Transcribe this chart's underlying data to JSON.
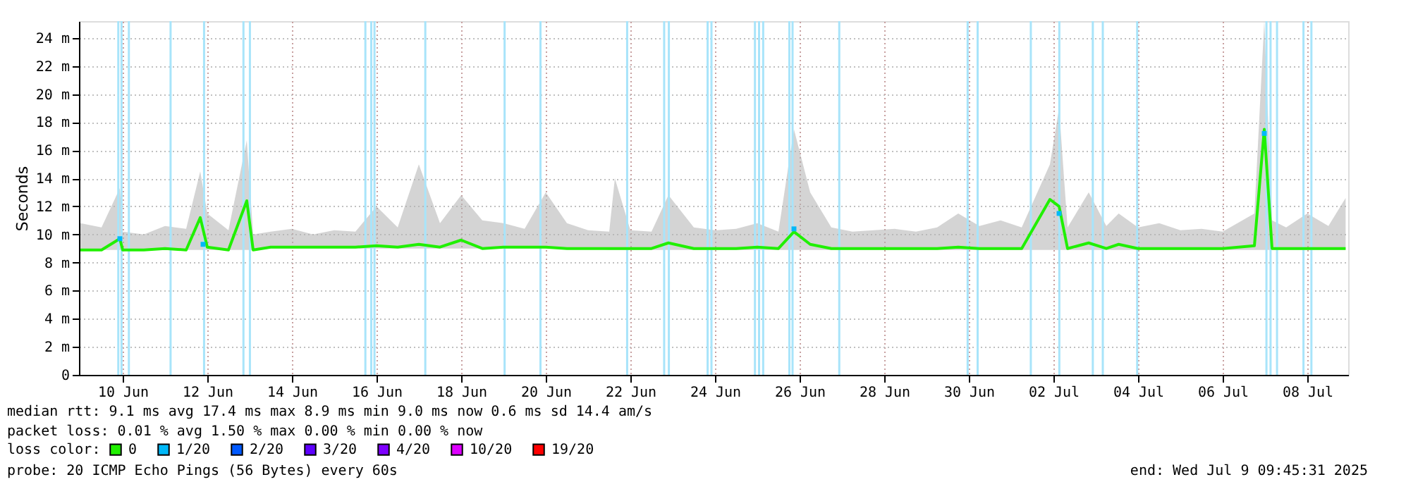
{
  "chart_data": {
    "type": "line",
    "ylabel": "Seconds",
    "xlim": [
      "2025-06-09T11:12",
      "2025-07-09T11:12"
    ],
    "xticks": [
      {
        "value": "2025-06-10T12:00",
        "label": "10 Jun"
      },
      {
        "value": "2025-06-12T12:00",
        "label": "12 Jun"
      },
      {
        "value": "2025-06-14T12:00",
        "label": "14 Jun"
      },
      {
        "value": "2025-06-16T12:00",
        "label": "16 Jun"
      },
      {
        "value": "2025-06-18T12:00",
        "label": "18 Jun"
      },
      {
        "value": "2025-06-20T12:00",
        "label": "20 Jun"
      },
      {
        "value": "2025-06-22T12:00",
        "label": "22 Jun"
      },
      {
        "value": "2025-06-24T12:00",
        "label": "24 Jun"
      },
      {
        "value": "2025-06-26T12:00",
        "label": "26 Jun"
      },
      {
        "value": "2025-06-28T12:00",
        "label": "28 Jun"
      },
      {
        "value": "2025-06-30T12:00",
        "label": "30 Jun"
      },
      {
        "value": "2025-07-02T12:00",
        "label": "02 Jul"
      },
      {
        "value": "2025-07-04T12:00",
        "label": "04 Jul"
      },
      {
        "value": "2025-07-06T12:00",
        "label": "06 Jul"
      },
      {
        "value": "2025-07-08T12:00",
        "label": "08 Jul"
      }
    ],
    "ylim": [
      0,
      25.2
    ],
    "yticks": [
      0,
      {
        "value": 2,
        "label": "2 m"
      },
      {
        "value": 4,
        "label": "4 m"
      },
      {
        "value": 6,
        "label": "6 m"
      },
      {
        "value": 8,
        "label": "8 m"
      },
      {
        "value": 10,
        "label": "10 m"
      },
      {
        "value": 12,
        "label": "12 m"
      },
      {
        "value": 14,
        "label": "14 m"
      },
      {
        "value": 16,
        "label": "16 m"
      },
      {
        "value": 18,
        "label": "18 m"
      },
      {
        "value": 20,
        "label": "20 m"
      },
      {
        "value": 22,
        "label": "22 m"
      },
      {
        "value": 24,
        "label": "24 m"
      }
    ],
    "grid": true,
    "legend": "bottom",
    "legend_title": "loss color:",
    "series": [
      {
        "name": "0",
        "color": "#20f000",
        "x": [
          "2025-06-09T12:00",
          "2025-06-10T00:00",
          "2025-06-10T10:24",
          "2025-06-10T12:00",
          "2025-06-11T00:00",
          "2025-06-11T12:00",
          "2025-06-12T00:00",
          "2025-06-12T08:00",
          "2025-06-12T12:00",
          "2025-06-13T00:00",
          "2025-06-13T10:24",
          "2025-06-13T14:00",
          "2025-06-14T00:00",
          "2025-06-14T12:00",
          "2025-06-15T00:00",
          "2025-06-15T12:00",
          "2025-06-16T00:00",
          "2025-06-16T12:00",
          "2025-06-17T00:00",
          "2025-06-17T12:00",
          "2025-06-18T00:00",
          "2025-06-18T12:00",
          "2025-06-19T00:00",
          "2025-06-19T12:00",
          "2025-06-20T00:00",
          "2025-06-20T12:00",
          "2025-06-21T00:00",
          "2025-06-21T12:00",
          "2025-06-22T00:00",
          "2025-06-22T03:12",
          "2025-06-22T12:00",
          "2025-06-23T00:00",
          "2025-06-23T09:36",
          "2025-06-24T00:00",
          "2025-06-24T12:00",
          "2025-06-25T00:00",
          "2025-06-25T12:00",
          "2025-06-26T00:00",
          "2025-06-26T08:48",
          "2025-06-26T18:00",
          "2025-06-27T06:00",
          "2025-06-27T18:00",
          "2025-06-28T06:00",
          "2025-06-28T18:00",
          "2025-06-29T06:00",
          "2025-06-29T18:00",
          "2025-06-30T06:00",
          "2025-06-30T18:00",
          "2025-07-01T06:00",
          "2025-07-01T18:00",
          "2025-07-02T10:00",
          "2025-07-02T15:12",
          "2025-07-02T20:00",
          "2025-07-03T08:00",
          "2025-07-03T18:00",
          "2025-07-04T01:00",
          "2025-07-04T12:00",
          "2025-07-05T00:00",
          "2025-07-05T12:00",
          "2025-07-06T00:00",
          "2025-07-06T12:00",
          "2025-07-07T06:00",
          "2025-07-07T11:36",
          "2025-07-07T16:00",
          "2025-07-08T00:00",
          "2025-07-08T12:00",
          "2025-07-09T00:00",
          "2025-07-09T09:45"
        ],
        "values": [
          8.9,
          8.9,
          9.7,
          8.9,
          8.9,
          9.0,
          8.9,
          11.2,
          9.1,
          8.9,
          12.4,
          8.9,
          9.1,
          9.1,
          9.1,
          9.1,
          9.1,
          9.2,
          9.1,
          9.3,
          9.1,
          9.6,
          9.0,
          9.1,
          9.1,
          9.1,
          9.0,
          9.0,
          9.0,
          9.0,
          9.0,
          9.0,
          9.4,
          9.0,
          9.0,
          9.0,
          9.1,
          9.0,
          10.2,
          9.3,
          9.0,
          9.0,
          9.0,
          9.0,
          9.0,
          9.0,
          9.1,
          9.0,
          9.0,
          9.0,
          12.5,
          12.0,
          9.0,
          9.4,
          9.0,
          9.3,
          9.0,
          9.0,
          9.0,
          9.0,
          9.0,
          9.2,
          17.5,
          9.0,
          9.0,
          9.0,
          9.0,
          9.0
        ],
        "lower": [
          8.9,
          8.9,
          8.9,
          8.9,
          8.9,
          8.9,
          8.9,
          8.9,
          8.9,
          8.9,
          8.9,
          8.9,
          9.0,
          9.0,
          9.0,
          9.0,
          9.0,
          9.0,
          9.0,
          9.0,
          9.0,
          9.0,
          9.0,
          9.0,
          9.0,
          9.0,
          9.0,
          9.0,
          8.9,
          8.9,
          8.9,
          8.9,
          8.9,
          8.9,
          8.9,
          8.9,
          8.9,
          8.9,
          8.9,
          8.9,
          8.9,
          8.9,
          8.9,
          8.9,
          8.9,
          8.9,
          8.9,
          8.9,
          8.9,
          8.9,
          8.9,
          8.9,
          8.9,
          8.9,
          8.9,
          8.9,
          8.9,
          8.9,
          8.9,
          8.9,
          8.9,
          8.9,
          8.9,
          8.9,
          8.9,
          8.9,
          8.9,
          8.9
        ],
        "upper": [
          10.8,
          10.5,
          13.3,
          10.2,
          10.0,
          10.6,
          10.4,
          14.5,
          11.5,
          10.3,
          16.7,
          10.0,
          10.2,
          10.4,
          10.0,
          10.3,
          10.2,
          12.0,
          10.5,
          15.0,
          10.8,
          12.8,
          11.0,
          10.8,
          10.4,
          13.0,
          10.8,
          10.3,
          10.2,
          14.0,
          10.3,
          10.2,
          12.8,
          10.5,
          10.3,
          10.4,
          10.8,
          10.2,
          17.5,
          13.0,
          10.5,
          10.2,
          10.3,
          10.4,
          10.2,
          10.5,
          11.5,
          10.6,
          11.0,
          10.5,
          15.0,
          19.0,
          10.5,
          13.0,
          10.6,
          11.5,
          10.5,
          10.8,
          10.3,
          10.4,
          10.2,
          11.5,
          25.2,
          11.0,
          10.5,
          11.5,
          10.6,
          12.6
        ]
      },
      {
        "name": "1/20",
        "type": "scatter",
        "color": "#00b8f8",
        "x": [
          "2025-06-10T10:24",
          "2025-06-12T09:36",
          "2025-06-26T08:48",
          "2025-07-02T15:12",
          "2025-07-07T11:36"
        ],
        "values": [
          9.7,
          9.3,
          10.4,
          11.5,
          17.2
        ]
      },
      {
        "name": "2/20",
        "type": "scatter",
        "color": "#0059ff"
      },
      {
        "name": "3/20",
        "type": "scatter",
        "color": "#5e00ff"
      },
      {
        "name": "4/20",
        "type": "scatter",
        "color": "#7e00ff"
      },
      {
        "name": "10/20",
        "type": "scatter",
        "color": "#dd00ff"
      },
      {
        "name": "19/20",
        "type": "scatter",
        "color": "#ff0000"
      }
    ],
    "ref_lines": [
      {
        "axis": "x",
        "value": "2025-06-10T09:30",
        "color": "#a8e4fa"
      },
      {
        "axis": "x",
        "value": "2025-06-10T11:20",
        "color": "#a8e4fa"
      },
      {
        "axis": "x",
        "value": "2025-06-10T15:30",
        "color": "#a8e4fa"
      },
      {
        "axis": "x",
        "value": "2025-06-11T15:10",
        "color": "#a8e4fa"
      },
      {
        "axis": "x",
        "value": "2025-06-12T10:10",
        "color": "#a8e4fa"
      },
      {
        "axis": "x",
        "value": "2025-06-13T08:30",
        "color": "#a8e4fa"
      },
      {
        "axis": "x",
        "value": "2025-06-13T12:10",
        "color": "#a8e4fa"
      },
      {
        "axis": "x",
        "value": "2025-06-16T05:40",
        "color": "#a8e4fa"
      },
      {
        "axis": "x",
        "value": "2025-06-16T09:00",
        "color": "#a8e4fa"
      },
      {
        "axis": "x",
        "value": "2025-06-16T10:50",
        "color": "#a8e4fa"
      },
      {
        "axis": "x",
        "value": "2025-06-17T15:40",
        "color": "#a8e4fa"
      },
      {
        "axis": "x",
        "value": "2025-06-19T12:40",
        "color": "#a8e4fa"
      },
      {
        "axis": "x",
        "value": "2025-06-20T09:00",
        "color": "#a8e4fa"
      },
      {
        "axis": "x",
        "value": "2025-06-22T10:10",
        "color": "#a8e4fa"
      },
      {
        "axis": "x",
        "value": "2025-06-23T07:10",
        "color": "#a8e4fa"
      },
      {
        "axis": "x",
        "value": "2025-06-23T09:50",
        "color": "#a8e4fa"
      },
      {
        "axis": "x",
        "value": "2025-06-24T07:50",
        "color": "#a8e4fa"
      },
      {
        "axis": "x",
        "value": "2025-06-24T10:00",
        "color": "#a8e4fa"
      },
      {
        "axis": "x",
        "value": "2025-06-25T10:40",
        "color": "#a8e4fa"
      },
      {
        "axis": "x",
        "value": "2025-06-25T13:00",
        "color": "#a8e4fa"
      },
      {
        "axis": "x",
        "value": "2025-06-25T15:20",
        "color": "#a8e4fa"
      },
      {
        "axis": "x",
        "value": "2025-06-26T06:10",
        "color": "#a8e4fa"
      },
      {
        "axis": "x",
        "value": "2025-06-26T08:00",
        "color": "#a8e4fa"
      },
      {
        "axis": "x",
        "value": "2025-06-27T10:30",
        "color": "#a8e4fa"
      },
      {
        "axis": "x",
        "value": "2025-06-30T11:20",
        "color": "#a8e4fa"
      },
      {
        "axis": "x",
        "value": "2025-06-30T17:00",
        "color": "#a8e4fa"
      },
      {
        "axis": "x",
        "value": "2025-07-01T23:10",
        "color": "#a8e4fa"
      },
      {
        "axis": "x",
        "value": "2025-07-02T15:20",
        "color": "#a8e4fa"
      },
      {
        "axis": "x",
        "value": "2025-07-03T10:20",
        "color": "#a8e4fa"
      },
      {
        "axis": "x",
        "value": "2025-07-03T16:00",
        "color": "#a8e4fa"
      },
      {
        "axis": "x",
        "value": "2025-07-04T11:30",
        "color": "#a8e4fa"
      },
      {
        "axis": "x",
        "value": "2025-07-07T12:50",
        "color": "#a8e4fa"
      },
      {
        "axis": "x",
        "value": "2025-07-07T15:10",
        "color": "#a8e4fa"
      },
      {
        "axis": "x",
        "value": "2025-07-07T18:50",
        "color": "#a8e4fa"
      },
      {
        "axis": "x",
        "value": "2025-07-08T09:50",
        "color": "#a8e4fa"
      },
      {
        "axis": "x",
        "value": "2025-07-08T14:20",
        "color": "#a8e4fa"
      }
    ],
    "annotations": [
      "median rtt:  9.1 ms avg  17.4 ms max  8.9 ms min  9.0 ms now  0.6 ms sd  14.4   am/s",
      "packet loss: 0.01 % avg  1.50 % max  0.00 % min  0.00 % now",
      "probe:       20 ICMP Echo Pings (56 Bytes) every 60s",
      "end: Wed Jul  9 09:45:31 2025"
    ]
  }
}
